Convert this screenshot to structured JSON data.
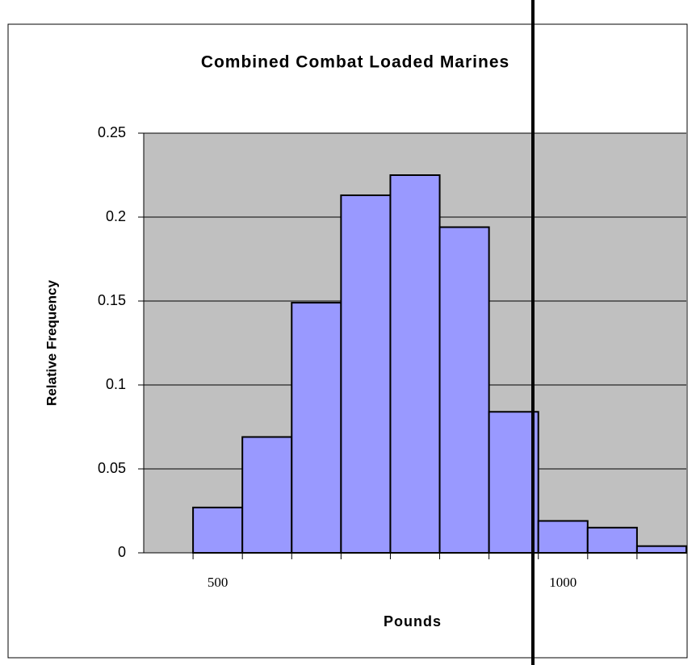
{
  "chart_data": {
    "type": "bar",
    "title": "Combined Combat Loaded Marines",
    "x_label": "Pounds",
    "y_label": "Relative Frequency",
    "categories": [
      null,
      "500",
      null,
      null,
      null,
      null,
      null,
      null,
      "1000",
      null,
      null
    ],
    "values": [
      0,
      0.027,
      0.069,
      0.149,
      0.213,
      0.225,
      0.194,
      0.084,
      0.019,
      0.015,
      0.004
    ],
    "color": "#9999ff",
    "ylim": [
      0,
      0.25
    ],
    "yticks": [
      0,
      0.05,
      0.1,
      0.15,
      0.2,
      0.25
    ],
    "grid": true
  }
}
